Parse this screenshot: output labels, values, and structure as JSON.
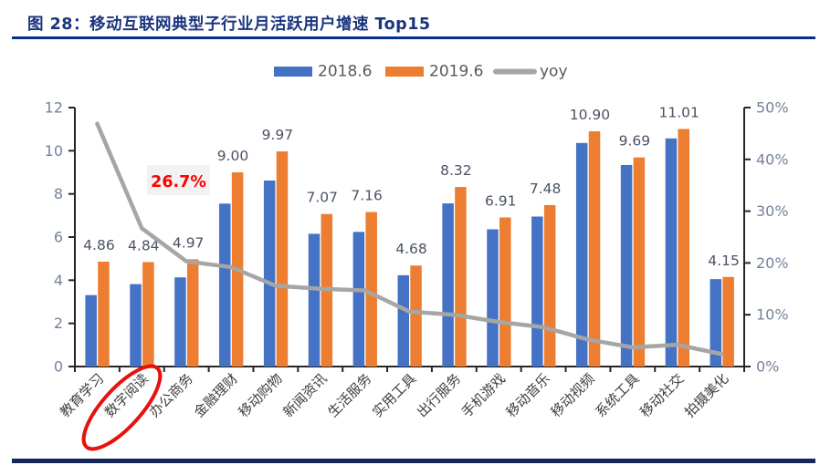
{
  "figure": {
    "title": "图 28：移动互联网典型子行业月活跃用户增速 Top15",
    "accent_rule_color": "#00338c",
    "footer_rule_color": "#14275c"
  },
  "chart_data": {
    "type": "bar",
    "subtype": "grouped-bars-with-line",
    "title": "移动互联网典型子行业月活跃用户增速 Top15",
    "categories": [
      "教育学习",
      "数字阅读",
      "办公商务",
      "金融理财",
      "移动购物",
      "新闻资讯",
      "生活服务",
      "实用工具",
      "出行服务",
      "手机游戏",
      "移动音乐",
      "移动视频",
      "系统工具",
      "移动社交",
      "拍摄美化"
    ],
    "series": [
      {
        "name": "2018.6",
        "type": "bar",
        "axis": "left",
        "color": "#4472C4",
        "values": [
          3.31,
          3.82,
          4.13,
          7.55,
          8.62,
          6.15,
          6.24,
          4.23,
          7.56,
          6.36,
          6.95,
          10.36,
          9.34,
          10.57,
          4.05
        ]
      },
      {
        "name": "2019.6",
        "type": "bar",
        "axis": "left",
        "color": "#ED7D31",
        "values": [
          4.86,
          4.84,
          4.97,
          9.0,
          9.97,
          7.07,
          7.16,
          4.68,
          8.32,
          6.91,
          7.48,
          10.9,
          9.69,
          11.01,
          4.15
        ]
      },
      {
        "name": "yoy",
        "type": "line",
        "axis": "right",
        "color": "#A6A6A6",
        "values_pct": [
          46.9,
          26.7,
          20.3,
          19.2,
          15.6,
          15.0,
          14.7,
          10.6,
          10.0,
          8.6,
          7.6,
          5.2,
          3.7,
          4.2,
          2.4
        ]
      }
    ],
    "bar_labels": [
      "4.86",
      "4.84",
      "4.97",
      "9.00",
      "9.97",
      "7.07",
      "7.16",
      "4.68",
      "8.32",
      "6.91",
      "7.48",
      "10.90",
      "9.69",
      "11.01",
      "4.15"
    ],
    "left_axis": {
      "min": 0,
      "max": 12,
      "ticks": [
        0,
        2,
        4,
        6,
        8,
        10,
        12
      ]
    },
    "right_axis": {
      "min_pct": 0,
      "max_pct": 50,
      "ticks_pct": [
        0,
        10,
        20,
        30,
        40,
        50
      ],
      "suffix": "%"
    },
    "grid": "off",
    "legend_position": "top-center",
    "annotation": {
      "text": "26.7%",
      "color": "#FF0000",
      "bg": "#f2f2f2",
      "target_category": "数字阅读"
    },
    "highlight": {
      "shape": "ellipse",
      "target_category_label": "数字阅读",
      "color": "#E8110E"
    },
    "style": {
      "axis_line_color": "#262626",
      "axis_tick_label_color": "#74839b",
      "bar_label_color": "#4a5264",
      "category_label_color": "#3f3f3f",
      "legend_text_color": "#595959"
    }
  }
}
